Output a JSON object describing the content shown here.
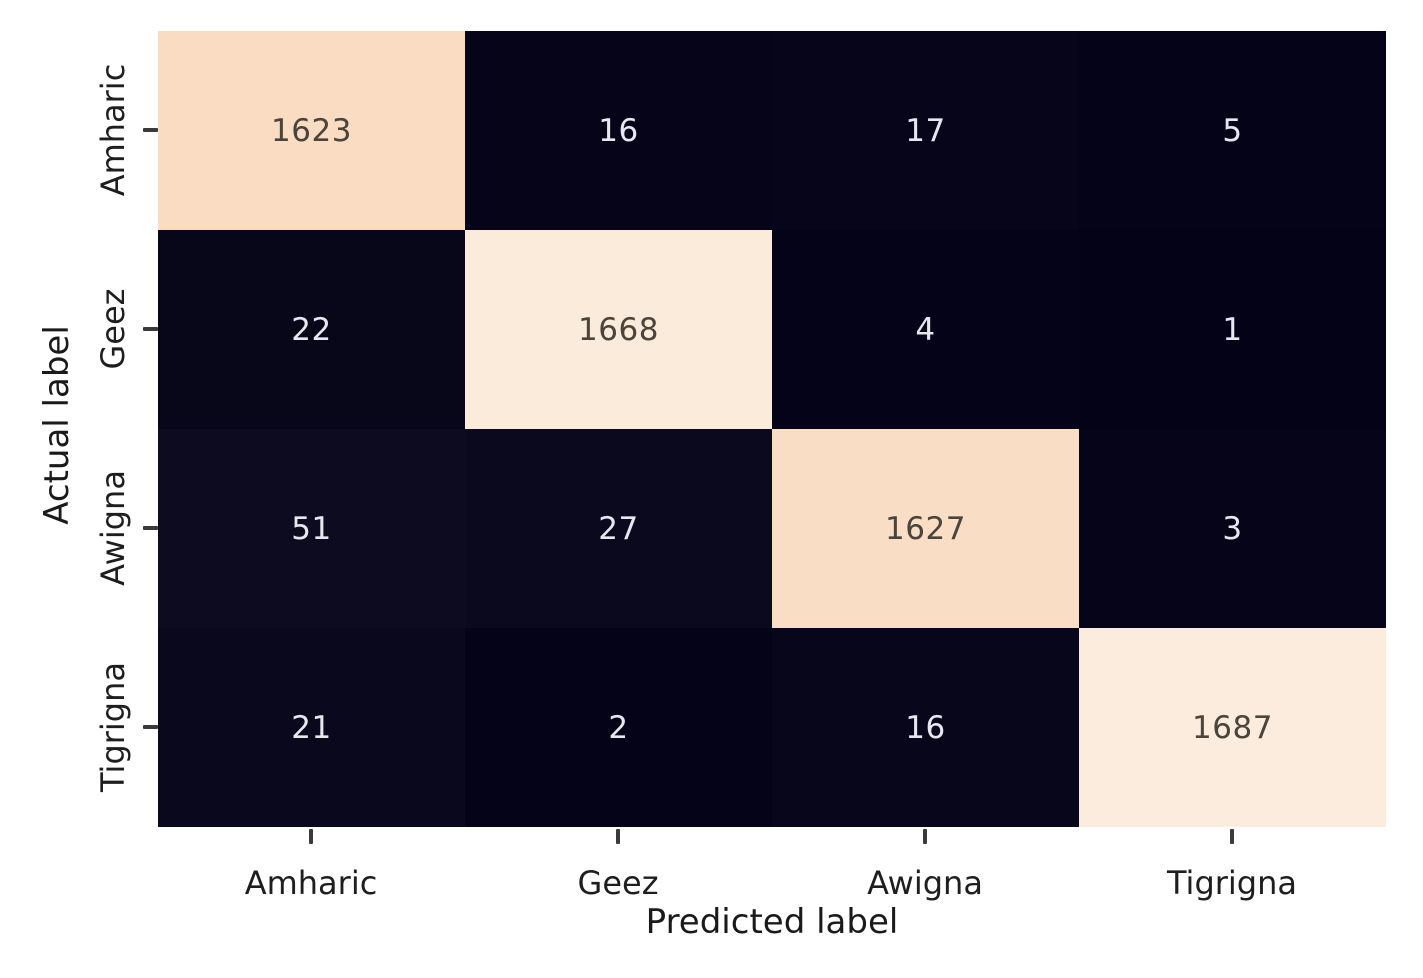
{
  "chart_data": {
    "type": "heatmap",
    "title": "",
    "xlabel": "Predicted label",
    "ylabel": "Actual label",
    "x_tick_labels": [
      "Amharic",
      "Geez",
      "Awigna",
      "Tigrigna"
    ],
    "y_tick_labels": [
      "Amharic",
      "Geez",
      "Awigna",
      "Tigrigna"
    ],
    "matrix": [
      [
        1623,
        16,
        17,
        5
      ],
      [
        22,
        1668,
        4,
        1
      ],
      [
        51,
        27,
        1627,
        3
      ],
      [
        21,
        2,
        16,
        1687
      ]
    ],
    "cell_colors": [
      [
        "#f9dcc2",
        "#050418",
        "#060519",
        "#040318"
      ],
      [
        "#080619",
        "#fbebdb",
        "#040318",
        "#030217"
      ],
      [
        "#0d0b20",
        "#0b091d",
        "#f9ddc4",
        "#050419"
      ],
      [
        "#09081c",
        "#040318",
        "#07061b",
        "#fcecdd"
      ]
    ],
    "cell_text_colors": [
      [
        "#4a443c",
        "#e8e6ee",
        "#e8e6ee",
        "#e8e6ee"
      ],
      [
        "#e8e6ee",
        "#4a443c",
        "#e8e6ee",
        "#e8e6ee"
      ],
      [
        "#e8e6ee",
        "#e8e6ee",
        "#4a443c",
        "#e8e6ee"
      ],
      [
        "#e8e6ee",
        "#e8e6ee",
        "#e8e6ee",
        "#4a443c"
      ]
    ],
    "colors": {
      "diagonal_low": "#f9dcc2",
      "diagonal_high": "#fcecdd",
      "off_diagonal_dark": "#050418",
      "axis_text": "#1e1e1e",
      "background": "#ffffff"
    },
    "xlim": [
      "Amharic",
      "Tigrigna"
    ],
    "ylim": [
      "Amharic",
      "Tigrigna"
    ],
    "grid": "off",
    "legend_position": "none"
  }
}
